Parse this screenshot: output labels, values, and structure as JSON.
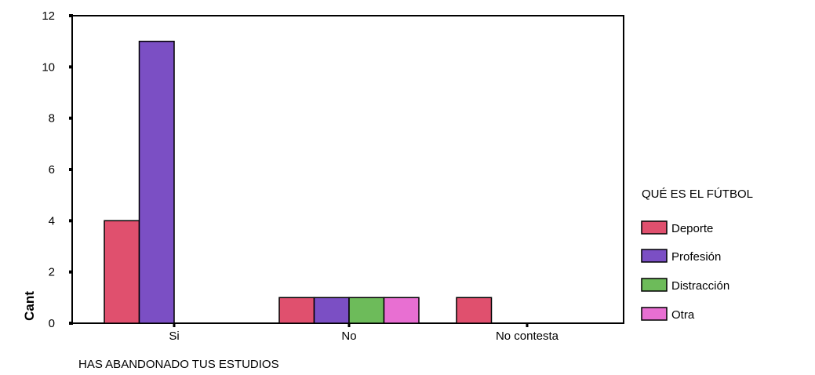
{
  "chart_data": {
    "type": "bar",
    "categories": [
      "Si",
      "No",
      "No contesta"
    ],
    "series": [
      {
        "name": "Deporte",
        "color": "#e0506e",
        "values": [
          4,
          1,
          1
        ]
      },
      {
        "name": "Profesión",
        "color": "#7b4fc4",
        "values": [
          11,
          1,
          0
        ]
      },
      {
        "name": "Distracción",
        "color": "#6dbb5a",
        "values": [
          0,
          1,
          0
        ]
      },
      {
        "name": "Otra",
        "color": "#e86fd2",
        "values": [
          0,
          1,
          0
        ]
      }
    ],
    "xlabel": "HAS ABANDONADO TUS ESTUDIOS",
    "ylabel": "Cant",
    "ylim": [
      0,
      12
    ],
    "yticks": [
      0,
      2,
      4,
      6,
      8,
      10,
      12
    ],
    "legend_title": "QUÉ ES EL FÚTBOL",
    "legend_position": "right",
    "grid": false
  }
}
